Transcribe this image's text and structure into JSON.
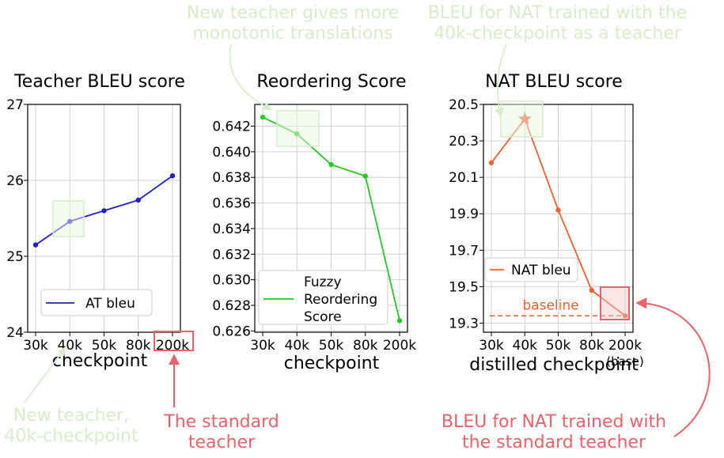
{
  "chart_data": [
    {
      "type": "line",
      "title": "Teacher BLEU score",
      "xlabel": "checkpoint",
      "ylabel": "",
      "categories": [
        "30k",
        "40k",
        "50k",
        "80k",
        "200k"
      ],
      "series": [
        {
          "name": "AT bleu",
          "color": "#1f1fd0",
          "values": [
            25.15,
            25.46,
            25.6,
            25.74,
            26.06
          ]
        }
      ],
      "ylim": [
        24,
        27
      ],
      "yticks": [
        "24",
        "25",
        "26",
        "27"
      ],
      "grid": true,
      "legend": "bottom-center"
    },
    {
      "type": "line",
      "title": "Reordering Score",
      "xlabel": "checkpoint",
      "ylabel": "",
      "categories": [
        "30k",
        "40k",
        "50k",
        "80k",
        "200k"
      ],
      "series": [
        {
          "name": "Fuzzy Reordering Score",
          "color": "#22cc22",
          "values": [
            0.6427,
            0.6414,
            0.639,
            0.6381,
            0.6268
          ]
        }
      ],
      "ylim": [
        0.6259,
        0.6437
      ],
      "yticks": [
        "0.626",
        "0.628",
        "0.630",
        "0.632",
        "0.634",
        "0.636",
        "0.638",
        "0.640",
        "0.642"
      ],
      "grid": true,
      "legend": "bottom-left"
    },
    {
      "type": "line",
      "title": "NAT BLEU score",
      "xlabel": "distilled checkpoint",
      "ylabel": "",
      "categories": [
        "30k",
        "40k",
        "50k",
        "80k",
        "200k"
      ],
      "category_sublabels": [
        "",
        "",
        "",
        "",
        "(base)"
      ],
      "series": [
        {
          "name": "NAT bleu",
          "color": "#f06030",
          "values": [
            20.18,
            20.42,
            19.92,
            19.48,
            19.34
          ]
        }
      ],
      "ylim": [
        19.25,
        20.5
      ],
      "yticks": [
        "19.3",
        "19.5",
        "19.7",
        "19.9",
        "20.1",
        "20.3",
        "20.5"
      ],
      "grid": true,
      "legend": "top-left",
      "highlight_point": "40k",
      "baseline": {
        "label": "baseline",
        "value": 19.34
      }
    }
  ],
  "annotations": {
    "new_teacher_monotonic": [
      "New teacher gives more",
      "monotonic translations"
    ],
    "nat_40k": [
      "BLEU for NAT trained with the",
      "40k-checkpoint as a teacher"
    ],
    "new_teacher_40k": [
      "New teacher,",
      "40k-checkpoint"
    ],
    "standard_teacher": [
      "The standard",
      "teacher"
    ],
    "nat_standard": [
      "BLEU for NAT trained with",
      "the standard teacher"
    ]
  },
  "colors": {
    "annotation_green": "#d8ecc8",
    "annotation_red": "#f0606a",
    "grid": "#d0d0d0"
  }
}
